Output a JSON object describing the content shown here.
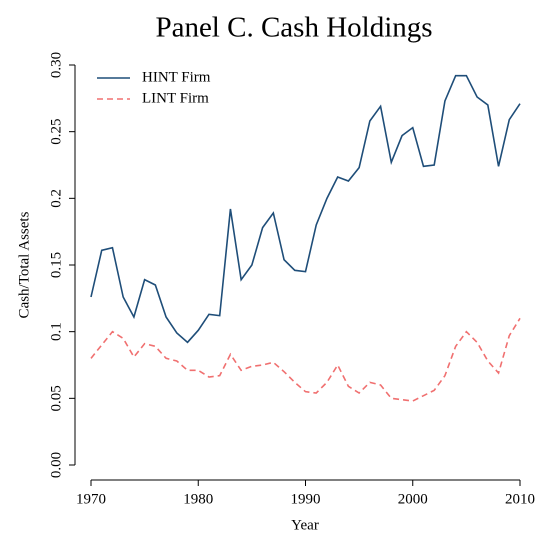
{
  "chart_data": {
    "type": "line",
    "title": "Panel C. Cash Holdings",
    "xlabel": "Year",
    "ylabel": "Cash/Total Assets",
    "x": [
      1970,
      1971,
      1972,
      1973,
      1974,
      1975,
      1976,
      1977,
      1978,
      1979,
      1980,
      1981,
      1982,
      1983,
      1984,
      1985,
      1986,
      1987,
      1988,
      1989,
      1990,
      1991,
      1992,
      1993,
      1994,
      1995,
      1996,
      1997,
      1998,
      1999,
      2000,
      2001,
      2002,
      2003,
      2004,
      2005,
      2006,
      2007,
      2008,
      2009,
      2010
    ],
    "series": [
      {
        "name": "HINT Firm",
        "color": "#1f4e79",
        "dash": false,
        "values": [
          0.126,
          0.161,
          0.163,
          0.126,
          0.111,
          0.139,
          0.135,
          0.111,
          0.099,
          0.092,
          0.101,
          0.113,
          0.112,
          0.192,
          0.139,
          0.15,
          0.178,
          0.189,
          0.154,
          0.146,
          0.145,
          0.18,
          0.2,
          0.216,
          0.213,
          0.223,
          0.258,
          0.269,
          0.227,
          0.247,
          0.253,
          0.224,
          0.225,
          0.273,
          0.292,
          0.292,
          0.276,
          0.27,
          0.224,
          0.259,
          0.271
        ]
      },
      {
        "name": "LINT Firm",
        "color": "#f07070",
        "dash": true,
        "values": [
          0.08,
          0.09,
          0.1,
          0.095,
          0.081,
          0.091,
          0.089,
          0.08,
          0.078,
          0.071,
          0.071,
          0.066,
          0.067,
          0.083,
          0.071,
          0.074,
          0.075,
          0.077,
          0.07,
          0.062,
          0.055,
          0.054,
          0.062,
          0.075,
          0.059,
          0.054,
          0.062,
          0.06,
          0.05,
          0.049,
          0.048,
          0.052,
          0.056,
          0.067,
          0.089,
          0.1,
          0.092,
          0.078,
          0.069,
          0.097,
          0.11
        ]
      }
    ],
    "xlim": [
      1970,
      2010
    ],
    "xticks": [
      1970,
      1980,
      1990,
      2000,
      2010
    ],
    "ylim": [
      0,
      0.3
    ],
    "yticks": [
      {
        "value": 0,
        "label": "0.00"
      },
      0.05,
      0.1,
      0.15,
      0.2,
      0.25,
      {
        "value": 0.3,
        "label": "0.30"
      }
    ],
    "legend": "upper left"
  }
}
